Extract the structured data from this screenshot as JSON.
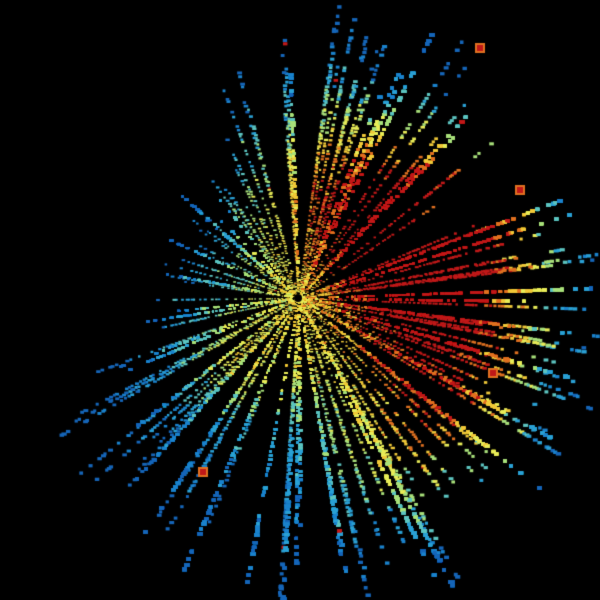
{
  "background": "#000000",
  "palette": [
    "#1565b8",
    "#1a82cc",
    "#2aa0d4",
    "#5cc4c0",
    "#a8e07a",
    "#e8ec58",
    "#f0c838",
    "#e07020",
    "#c01818"
  ]
}
